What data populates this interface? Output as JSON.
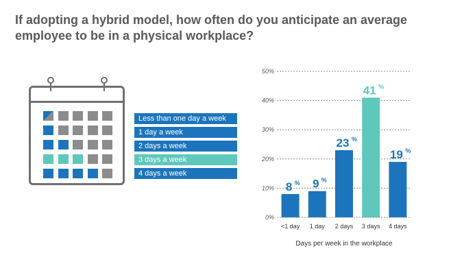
{
  "title_lines": [
    "If adopting a hybrid model, how often do you anticipate an average",
    "employee to be in a physical workplace?"
  ],
  "legend": [
    {
      "label": "Less than one day a week",
      "color": "#1c75bc"
    },
    {
      "label": "1 day a week",
      "color": "#1c75bc"
    },
    {
      "label": "2 days a week",
      "color": "#1c75bc"
    },
    {
      "label": "3 days a week",
      "color": "#5ec8bc"
    },
    {
      "label": "4 days a week",
      "color": "#1c75bc"
    }
  ],
  "calendar_rows": [
    [
      "split",
      "grey",
      "grey",
      "grey",
      "grey"
    ],
    [
      "blue",
      "grey",
      "grey",
      "grey",
      "grey"
    ],
    [
      "blue",
      "blue",
      "grey",
      "grey",
      "grey"
    ],
    [
      "teal",
      "teal",
      "teal",
      "grey",
      "grey"
    ],
    [
      "blue",
      "blue",
      "blue",
      "blue",
      "grey"
    ]
  ],
  "colors": {
    "blue": "#1c75bc",
    "teal": "#5ec8bc",
    "grey": "#8c8c8c",
    "grid": "#8c8c8c"
  },
  "chart_data": {
    "type": "bar",
    "categories": [
      "<1 day",
      "1 day",
      "2 days",
      "3 days",
      "4 days"
    ],
    "values": [
      8,
      9,
      23,
      41,
      19
    ],
    "highlight_index": 3,
    "value_suffix": "%",
    "xlabel": "Days per week in the workplace",
    "ylabel": "",
    "ylim": [
      0,
      50
    ],
    "yticks": [
      0,
      10,
      20,
      30,
      40,
      50
    ],
    "ytick_labels": [
      "0%",
      "10%",
      "20%",
      "30%",
      "40%",
      "50%"
    ],
    "grid": true
  }
}
